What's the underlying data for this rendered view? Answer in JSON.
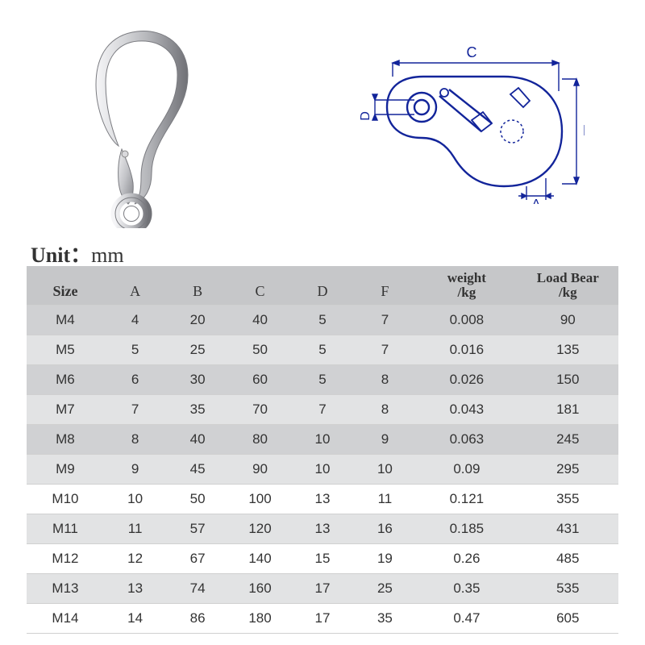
{
  "unit_label_prefix": "Unit：",
  "unit_label_value": "mm",
  "diagram": {
    "label_A": "A",
    "label_B": "B",
    "label_C": "C",
    "label_D": "D",
    "outline_color": "#12249a",
    "dim_line_color": "#12249a",
    "text_color": "#12249a"
  },
  "photo": {
    "body_light": "#e8e8ea",
    "body_mid": "#bfc0c4",
    "body_dark": "#8b8c90",
    "shadow": "#6a6b6f"
  },
  "table": {
    "header_bg": "#c6c7c9",
    "row_even_bg": "#e2e3e4",
    "row_odd_bg": "#d0d1d3",
    "row_alt_bg": "#ffffff",
    "border_color": "#d0d0d0",
    "font_size_header": 18,
    "font_size_cell": 17,
    "columns": [
      {
        "key": "size",
        "label": "Size",
        "bold": true
      },
      {
        "key": "a",
        "label": "A",
        "bold": false
      },
      {
        "key": "b",
        "label": "B",
        "bold": false
      },
      {
        "key": "c",
        "label": "C",
        "bold": false
      },
      {
        "key": "d",
        "label": "D",
        "bold": false
      },
      {
        "key": "f",
        "label": "F",
        "bold": false
      },
      {
        "key": "weight",
        "label_l1": "weight",
        "label_l2": "/kg",
        "bold": true,
        "two_line": true
      },
      {
        "key": "load",
        "label_l1": "Load Bear",
        "label_l2": "/kg",
        "bold": true,
        "two_line": true
      }
    ],
    "row_bands": [
      "#d0d1d3",
      "#e2e3e4",
      "#d0d1d3",
      "#e2e3e4",
      "#d0d1d3",
      "#e2e3e4",
      "#ffffff",
      "#e2e3e4",
      "#ffffff",
      "#e2e3e4",
      "#ffffff"
    ],
    "rows": [
      {
        "size": "M4",
        "a": "4",
        "b": "20",
        "c": "40",
        "d": "5",
        "f": "7",
        "weight": "0.008",
        "load": "90"
      },
      {
        "size": "M5",
        "a": "5",
        "b": "25",
        "c": "50",
        "d": "5",
        "f": "7",
        "weight": "0.016",
        "load": "135"
      },
      {
        "size": "M6",
        "a": "6",
        "b": "30",
        "c": "60",
        "d": "5",
        "f": "8",
        "weight": "0.026",
        "load": "150"
      },
      {
        "size": "M7",
        "a": "7",
        "b": "35",
        "c": "70",
        "d": "7",
        "f": "8",
        "weight": "0.043",
        "load": "181"
      },
      {
        "size": "M8",
        "a": "8",
        "b": "40",
        "c": "80",
        "d": "10",
        "f": "9",
        "weight": "0.063",
        "load": "245"
      },
      {
        "size": "M9",
        "a": "9",
        "b": "45",
        "c": "90",
        "d": "10",
        "f": "10",
        "weight": "0.09",
        "load": "295"
      },
      {
        "size": "M10",
        "a": "10",
        "b": "50",
        "c": "100",
        "d": "13",
        "f": "11",
        "weight": "0.121",
        "load": "355"
      },
      {
        "size": "M11",
        "a": "11",
        "b": "57",
        "c": "120",
        "d": "13",
        "f": "16",
        "weight": "0.185",
        "load": "431"
      },
      {
        "size": "M12",
        "a": "12",
        "b": "67",
        "c": "140",
        "d": "15",
        "f": "19",
        "weight": "0.26",
        "load": "485"
      },
      {
        "size": "M13",
        "a": "13",
        "b": "74",
        "c": "160",
        "d": "17",
        "f": "25",
        "weight": "0.35",
        "load": "535"
      },
      {
        "size": "M14",
        "a": "14",
        "b": "86",
        "c": "180",
        "d": "17",
        "f": "35",
        "weight": "0.47",
        "load": "605"
      }
    ]
  }
}
